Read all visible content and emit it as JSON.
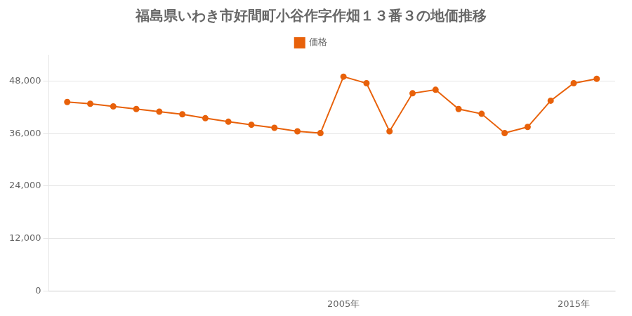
{
  "chart_data": {
    "type": "line",
    "title": "福島県いわき市好間町小谷作字作畑１３番３の地価推移",
    "x": [
      1993,
      1994,
      1995,
      1996,
      1997,
      1998,
      1999,
      2000,
      2001,
      2002,
      2003,
      2004,
      2005,
      2006,
      2007,
      2008,
      2009,
      2010,
      2011,
      2012,
      2013,
      2014,
      2015,
      2016
    ],
    "series": [
      {
        "name": "価格",
        "color": "#e8610a",
        "marker": "circle",
        "line_style": "solid",
        "values": [
          43200,
          42800,
          42200,
          41600,
          41000,
          40400,
          39500,
          38700,
          38000,
          37300,
          36500,
          36100,
          49000,
          47500,
          36500,
          45200,
          46000,
          41600,
          40500,
          36100,
          37500,
          43500,
          47500,
          48500
        ]
      }
    ],
    "xlim": [
      1992.2,
      2016.8
    ],
    "xticks": [
      {
        "value": 2005,
        "label": "2005年"
      },
      {
        "value": 2015,
        "label": "2015年"
      }
    ],
    "ylim": [
      0,
      54000
    ],
    "yticks": [
      0,
      {
        "value": 12000,
        "label": "12,000"
      },
      {
        "value": 24000,
        "label": "24,000"
      },
      {
        "value": 36000,
        "label": "36,000"
      },
      {
        "value": 48000,
        "label": "48,000"
      }
    ],
    "grid": "y",
    "legend": "top"
  }
}
